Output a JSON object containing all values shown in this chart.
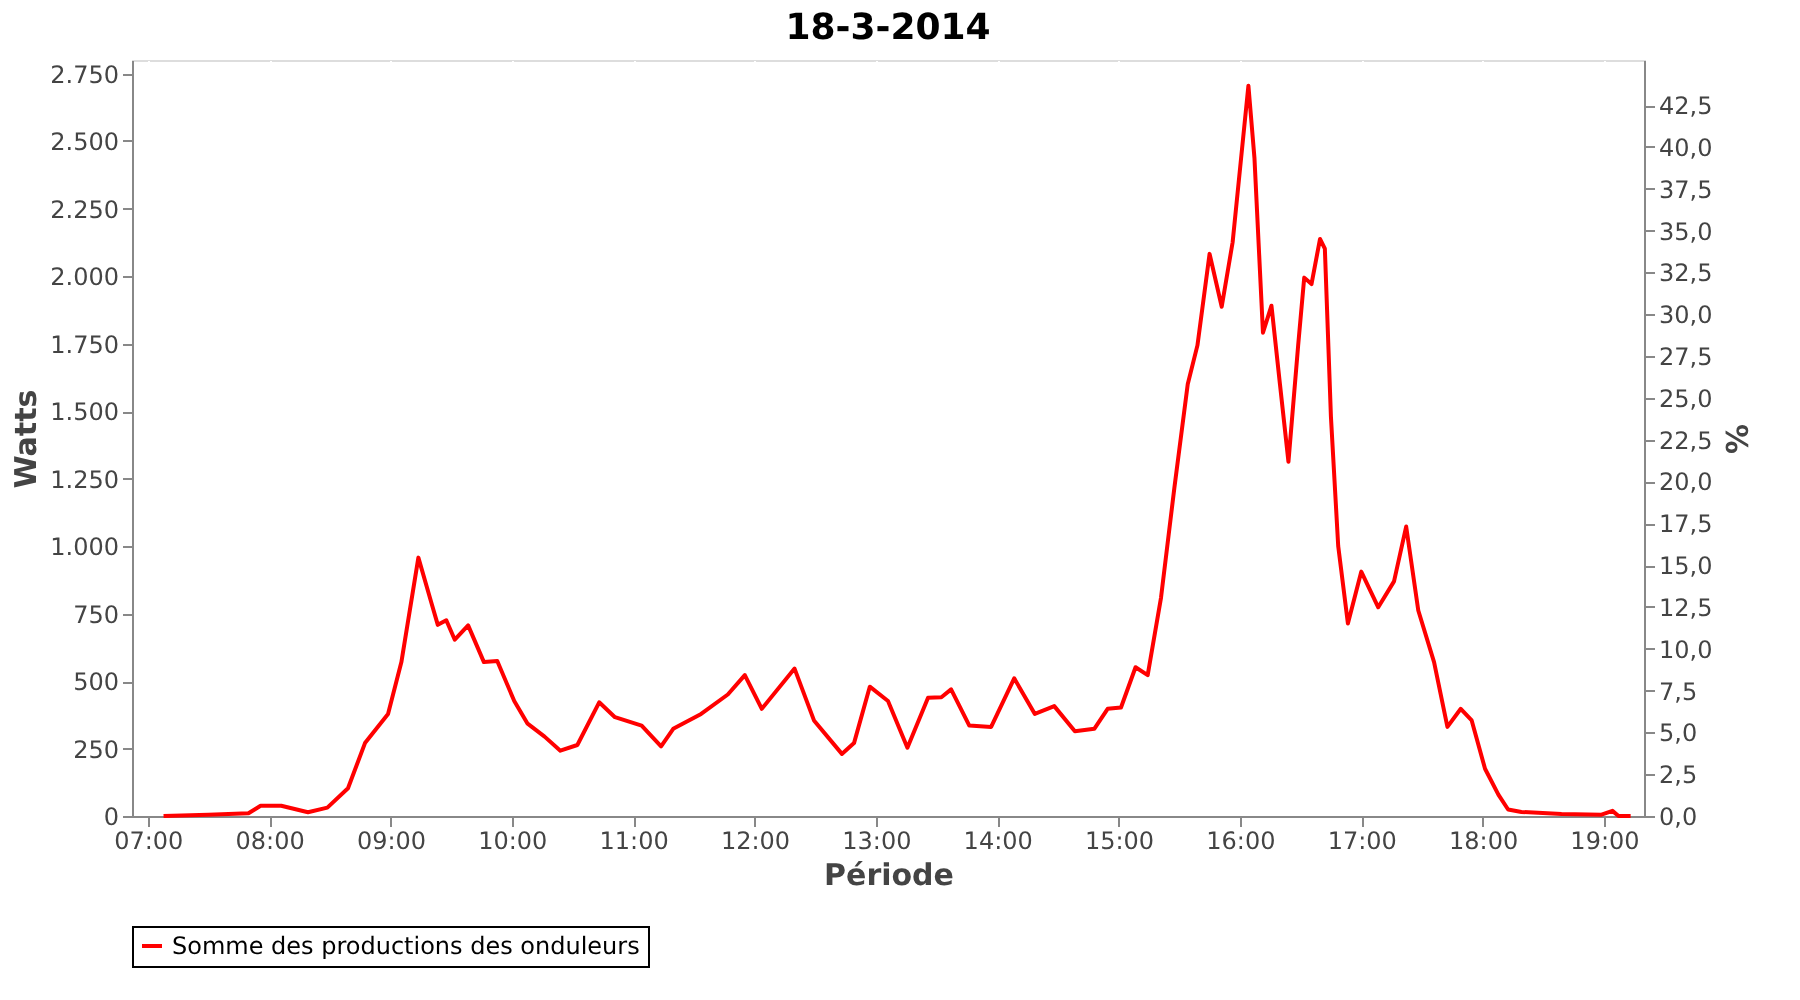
{
  "chart_data": {
    "type": "line",
    "title": "18-3-2014",
    "xlabel": "Période",
    "ylabel": "Watts",
    "y2label": "%",
    "xlim": [
      6.87,
      19.33
    ],
    "xticks": [
      {
        "value": 7,
        "label": "07:00"
      },
      {
        "value": 8,
        "label": "08:00"
      },
      {
        "value": 9,
        "label": "09:00"
      },
      {
        "value": 10,
        "label": "10:00"
      },
      {
        "value": 11,
        "label": "11:00"
      },
      {
        "value": 12,
        "label": "12:00"
      },
      {
        "value": 13,
        "label": "13:00"
      },
      {
        "value": 14,
        "label": "14:00"
      },
      {
        "value": 15,
        "label": "15:00"
      },
      {
        "value": 16,
        "label": "16:00"
      },
      {
        "value": 17,
        "label": "17:00"
      },
      {
        "value": 18,
        "label": "18:00"
      },
      {
        "value": 19,
        "label": "19:00"
      }
    ],
    "ylim": [
      0,
      2800
    ],
    "yticks": [
      0,
      250,
      500,
      750,
      {
        "value": 1000,
        "label": "1.000"
      },
      {
        "value": 1250,
        "label": "1.250"
      },
      {
        "value": 1500,
        "label": "1.500"
      },
      {
        "value": 1750,
        "label": "1.750"
      },
      {
        "value": 2000,
        "label": "2.000"
      },
      {
        "value": 2250,
        "label": "2.250"
      },
      {
        "value": 2500,
        "label": "2.500"
      },
      {
        "value": 2750,
        "label": "2.750"
      }
    ],
    "y2lim": [
      0,
      45.2
    ],
    "y2ticks": [
      {
        "value": 0,
        "label": "0,0"
      },
      {
        "value": 2.5,
        "label": "2,5"
      },
      {
        "value": 5,
        "label": "5,0"
      },
      {
        "value": 7.5,
        "label": "7,5"
      },
      {
        "value": 10,
        "label": "10,0"
      },
      {
        "value": 12.5,
        "label": "12,5"
      },
      {
        "value": 15,
        "label": "15,0"
      },
      {
        "value": 17.5,
        "label": "17,5"
      },
      {
        "value": 20,
        "label": "20,0"
      },
      {
        "value": 22.5,
        "label": "22,5"
      },
      {
        "value": 25,
        "label": "25,0"
      },
      {
        "value": 27.5,
        "label": "27,5"
      },
      {
        "value": 30,
        "label": "30,0"
      },
      {
        "value": 32.5,
        "label": "32,5"
      },
      {
        "value": 35,
        "label": "35,0"
      },
      {
        "value": 37.5,
        "label": "37,5"
      },
      {
        "value": 40,
        "label": "40,0"
      },
      {
        "value": 42.5,
        "label": "42,5"
      }
    ],
    "grid": true,
    "legend": "bottom",
    "marker": "none",
    "line_style": "solid",
    "series": [
      {
        "name": "Somme des productions des onduleurs",
        "color": "#ff0000",
        "x": [
          7.13,
          7.5,
          7.83,
          7.93,
          8.1,
          8.32,
          8.48,
          8.65,
          8.79,
          8.98,
          9.09,
          9.23,
          9.34,
          9.39,
          9.46,
          9.53,
          9.64,
          9.77,
          9.88,
          10.02,
          10.13,
          10.27,
          10.4,
          10.54,
          10.72,
          10.85,
          11.07,
          11.23,
          11.33,
          11.56,
          11.78,
          11.92,
          12.06,
          12.33,
          12.49,
          12.72,
          12.82,
          12.95,
          13.1,
          13.26,
          13.43,
          13.54,
          13.62,
          13.77,
          13.95,
          14.14,
          14.31,
          14.47,
          14.64,
          14.8,
          14.91,
          15.02,
          15.14,
          15.24,
          15.35,
          15.46,
          15.57,
          15.65,
          15.75,
          15.85,
          15.94,
          16.07,
          16.12,
          16.19,
          16.26,
          16.33,
          16.4,
          16.48,
          16.53,
          16.59,
          16.66,
          16.7,
          16.75,
          16.81,
          16.89,
          17.0,
          17.14,
          17.27,
          17.37,
          17.47,
          17.6,
          17.71,
          17.82,
          17.91,
          18.02,
          18.13,
          18.21,
          18.32,
          18.65,
          18.98,
          19.07,
          19.12,
          19.22
        ],
        "values": [
          0,
          5,
          10,
          38,
          38,
          14,
          31,
          103,
          270,
          378,
          570,
          957,
          785,
          708,
          725,
          653,
          706,
          570,
          574,
          426,
          342,
          294,
          242,
          263,
          421,
          366,
          335,
          258,
          323,
          378,
          450,
          522,
          397,
          546,
          354,
          230,
          270,
          479,
          426,
          253,
          438,
          440,
          469,
          335,
          330,
          510,
          378,
          407,
          314,
          323,
          397,
          402,
          551,
          522,
          809,
          1216,
          1599,
          1743,
          2082,
          1886,
          2125,
          2705,
          2436,
          1790,
          1890,
          1599,
          1312,
          1743,
          1994,
          1970,
          2137,
          2101,
          1479,
          1000,
          713,
          905,
          773,
          869,
          1072,
          761,
          570,
          330,
          397,
          354,
          175,
          79,
          24,
          15,
          7,
          5,
          19,
          0,
          0
        ]
      }
    ]
  }
}
